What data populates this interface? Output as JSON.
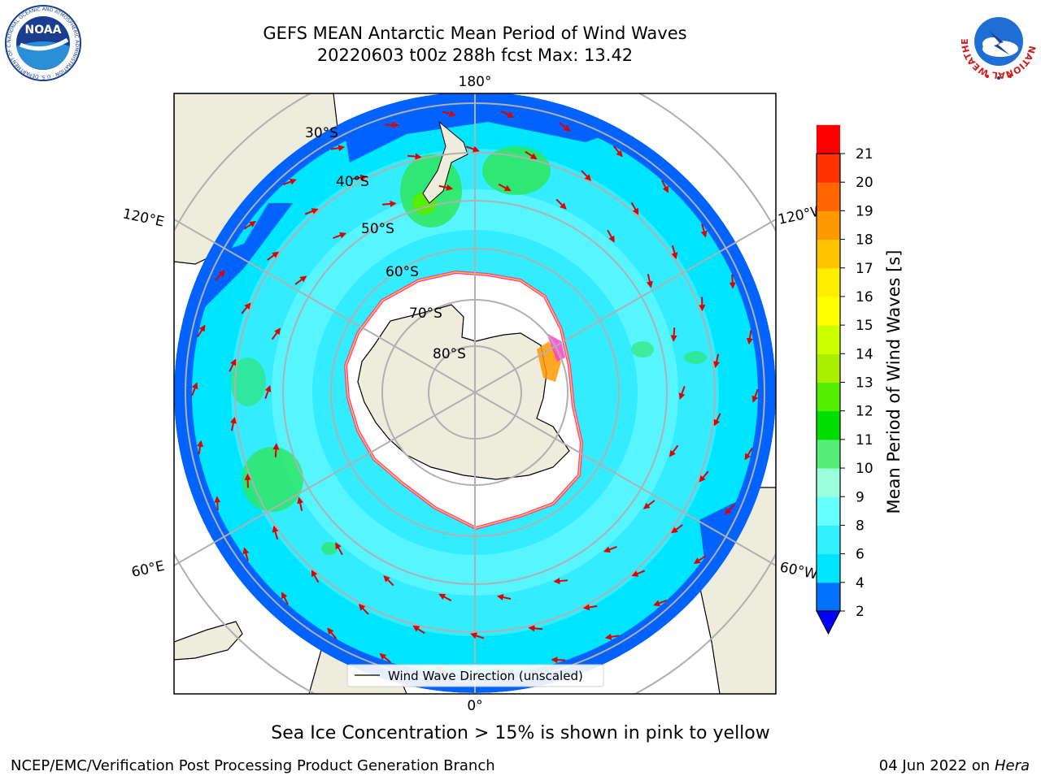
{
  "header": {
    "title_line1": "GEFS MEAN Antarctic Mean Period of Wind Waves",
    "title_line2": "20220603 t00z 288h fcst   Max: 13.42"
  },
  "map": {
    "meridian_labels": {
      "top": "180°",
      "bottom": "0°",
      "left_upper": "120°E",
      "left_lower": "60°E",
      "right_upper": "120°W",
      "right_lower": "60°W"
    },
    "latitude_labels": [
      "30°S",
      "40°S",
      "50°S",
      "60°S",
      "70°S",
      "80°S"
    ],
    "legend_label": "Wind Wave Direction (unscaled)",
    "colors": {
      "ocean_deep": "#0062ff",
      "ocean_main": "#00e5ff",
      "ocean_light": "#57f5ff",
      "green": "#2ee65c",
      "land": "#eeecdc",
      "ice": "#ffffff",
      "arrow": "#e00000",
      "ice_edge": "#ff33cc"
    }
  },
  "colorbar": {
    "label": "Mean Period of Wind Waves [s]",
    "ticks": [
      "2",
      "4",
      "6",
      "8",
      "9",
      "10",
      "11",
      "12",
      "13",
      "14",
      "15",
      "16",
      "17",
      "18",
      "19",
      "20",
      "21"
    ],
    "colors": [
      "#0000ff",
      "#0070ff",
      "#00e5ff",
      "#33f0ff",
      "#66ffff",
      "#99ffdd",
      "#55ee77",
      "#00dd00",
      "#55ee00",
      "#aaee00",
      "#ccff00",
      "#ffff00",
      "#ffee00",
      "#ffc400",
      "#ff9900",
      "#ff6600",
      "#ff3300",
      "#ff0000"
    ]
  },
  "footer": {
    "note": "Sea Ice Concentration > 15% is shown in pink to yellow",
    "credit": "NCEP/EMC/Verification Post Processing Product Generation Branch",
    "date": "04 Jun 2022 on",
    "date_machine": "Hera"
  },
  "logos": {
    "noaa": "NOAA",
    "noaa_ring": "NATIONAL OCEANIC AND ATMOSPHERIC ADMINISTRATION · U.S. DEPARTMENT OF COMMERCE",
    "nws_ring": "NATIONAL WEATHER SERVICE"
  }
}
